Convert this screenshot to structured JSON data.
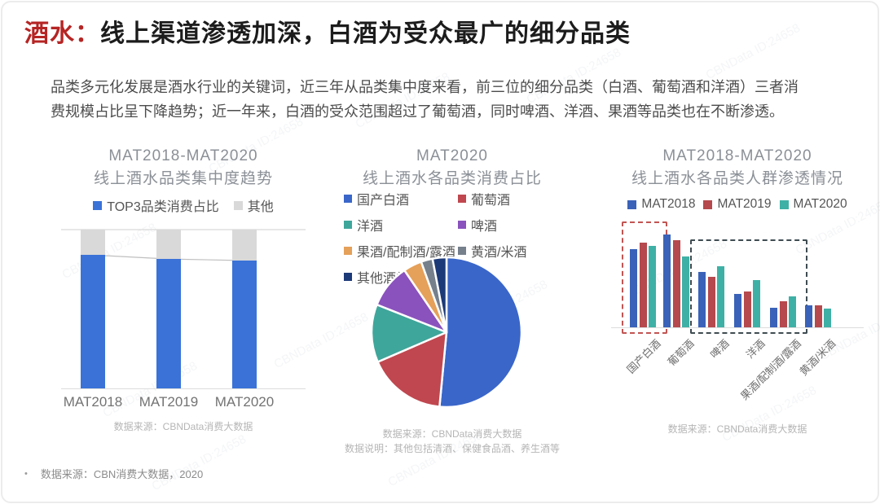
{
  "page": {
    "title_prefix": "酒水：",
    "title_rest": "线上渠道渗透加深，白酒为受众最广的细分品类",
    "intro": "品类多元化发展是酒水行业的关键词，近三年从品类集中度来看，前三位的细分品类（白酒、葡萄酒和洋酒）三者消费规模占比呈下降趋势；近一年来，白酒的受众范围超过了葡萄酒，同时啤酒、洋酒、果酒等品类也在不断渗透。",
    "footer_bullet": "•",
    "footer": "数据来源：CBN消费大数据，2020",
    "watermark": "CBNData ID:24658"
  },
  "colors": {
    "title_red": "#b52524",
    "axis_gray": "#dcdcdc",
    "caption_gray": "#b5b5b5",
    "highlight_red": "#c25553",
    "highlight_dark": "#3f4c52"
  },
  "chart_data": [
    {
      "type": "bar",
      "subtype": "stacked-100-percent",
      "title": "MAT2018-MAT2020",
      "subtitle": "线上酒水品类集中度趋势",
      "categories": [
        "MAT2018",
        "MAT2019",
        "MAT2020"
      ],
      "series": [
        {
          "name": "TOP3品类消费占比",
          "color": "#3a72d8",
          "values": [
            84,
            81.5,
            80.5
          ]
        },
        {
          "name": "其他",
          "color": "#d9d9d9",
          "values": [
            16,
            18.5,
            19.5
          ]
        }
      ],
      "ylim": [
        0,
        100
      ],
      "grid": false,
      "legend_position": "top",
      "trend_line_on_top3": true,
      "source": "数据来源：CBNData消费大数据"
    },
    {
      "type": "pie",
      "title": "MAT2020",
      "subtitle": "线上酒水各品类消费占比",
      "slices": [
        {
          "label": "国产白酒",
          "value": 51.5,
          "color": "#3a66c9"
        },
        {
          "label": "葡萄酒",
          "value": 17,
          "color": "#c0474f"
        },
        {
          "label": "洋酒",
          "value": 12.5,
          "color": "#3fa69b"
        },
        {
          "label": "啤酒",
          "value": 9.5,
          "color": "#8a52bd"
        },
        {
          "label": "果酒/配制酒/露酒",
          "value": 4,
          "color": "#e5a05a"
        },
        {
          "label": "黄酒/米酒",
          "value": 2.5,
          "color": "#76808c"
        },
        {
          "label": "其他酒类",
          "value": 3,
          "color": "#1c3a78"
        }
      ],
      "legend_position": "top-two-columns",
      "legend_columns": [
        [
          0,
          2,
          4,
          6
        ],
        [
          1,
          3,
          5
        ]
      ],
      "source": "数据来源：CBNData消费大数据",
      "note": "数据说明：其他包括清酒、保健食品酒、养生酒等"
    },
    {
      "type": "bar",
      "subtype": "grouped",
      "title": "MAT2018-MAT2020",
      "subtitle": "线上酒水各品类人群渗透情况",
      "categories": [
        "国产白酒",
        "葡萄酒",
        "啤酒",
        "洋酒",
        "果酒/配制酒/露酒",
        "黄酒/米酒"
      ],
      "series": [
        {
          "name": "MAT2018",
          "color": "#3a62b8",
          "values": [
            84,
            100,
            60,
            36,
            21,
            24
          ]
        },
        {
          "name": "MAT2019",
          "color": "#b5494d",
          "values": [
            91,
            94,
            54,
            39,
            28,
            24
          ]
        },
        {
          "name": "MAT2020",
          "color": "#3fb0a5",
          "values": [
            88,
            76,
            66,
            51,
            33,
            20
          ]
        }
      ],
      "ylim": [
        0,
        100
      ],
      "value_unit": "relative-index",
      "grid": false,
      "legend_position": "top",
      "highlights": [
        {
          "category_range": [
            0,
            0
          ],
          "color": "#c25553",
          "meaning": "国产白酒"
        },
        {
          "category_range": [
            2,
            4
          ],
          "color": "#3f4c52",
          "meaning": "啤酒/洋酒/果酒配制酒露酒"
        }
      ],
      "source": "数据来源：CBNData消费大数据"
    }
  ]
}
